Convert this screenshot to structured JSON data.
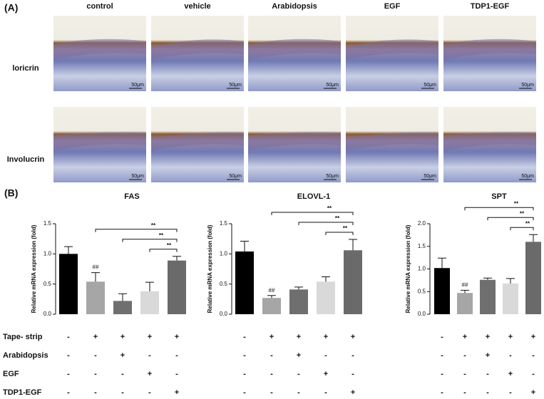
{
  "panel_a": {
    "label": "(A)",
    "columns": [
      "control",
      "vehicle",
      "Arabidopsis",
      "EGF",
      "TDP1-EGF"
    ],
    "rows": [
      "loricrin",
      "Involucrin"
    ],
    "scale_bar": "50μm"
  },
  "panel_b": {
    "label": "(B)"
  },
  "treatments": [
    {
      "label": "Tape- strip",
      "signs": [
        "-",
        "+",
        "+",
        "+",
        "+"
      ]
    },
    {
      "label": "Arabidopsis",
      "signs": [
        "-",
        "-",
        "+",
        "-",
        "-"
      ]
    },
    {
      "label": "EGF",
      "signs": [
        "-",
        "-",
        "-",
        "+",
        "-"
      ]
    },
    {
      "label": "TDP1-EGF",
      "signs": [
        "-",
        "-",
        "-",
        "-",
        "+"
      ]
    }
  ],
  "chart_data": [
    {
      "type": "bar",
      "title": "FAS",
      "ylabel": "Relative mRNA expression (fold)",
      "values": [
        1.0,
        0.54,
        0.22,
        0.38,
        0.89
      ],
      "errors": [
        0.12,
        0.15,
        0.12,
        0.15,
        0.07
      ],
      "colors": [
        "#000000",
        "#a6a6a6",
        "#6f6f6f",
        "#d9d9d9",
        "#6a6a6a"
      ],
      "annotations": [
        null,
        "##",
        null,
        null,
        null
      ],
      "significance": [
        "**",
        "**",
        "**"
      ],
      "ylim": [
        0,
        1.5
      ],
      "yticks": [
        {
          "value": 0,
          "label": "0.0"
        },
        0.5,
        {
          "value": 1,
          "label": "1.0"
        },
        1.5
      ]
    },
    {
      "type": "bar",
      "title": "ELOVL-1",
      "ylabel": "Relative mRNA expression (fold)",
      "values": [
        1.04,
        0.27,
        0.41,
        0.54,
        1.06
      ],
      "errors": [
        0.17,
        0.04,
        0.04,
        0.08,
        0.18
      ],
      "colors": [
        "#000000",
        "#a6a6a6",
        "#6f6f6f",
        "#d9d9d9",
        "#6a6a6a"
      ],
      "annotations": [
        null,
        "##",
        null,
        null,
        null
      ],
      "significance": [
        "**",
        "**",
        "**"
      ],
      "ylim": [
        0,
        1.5
      ],
      "yticks": [
        {
          "value": 0,
          "label": "0.0"
        },
        0.5,
        {
          "value": 1,
          "label": "1.0"
        },
        1.5
      ]
    },
    {
      "type": "bar",
      "title": "SPT",
      "ylabel": "Relative mRNA expression (fold)",
      "values": [
        1.02,
        0.47,
        0.76,
        0.68,
        1.6
      ],
      "errors": [
        0.22,
        0.06,
        0.04,
        0.11,
        0.16
      ],
      "colors": [
        "#000000",
        "#a6a6a6",
        "#6f6f6f",
        "#d9d9d9",
        "#6a6a6a"
      ],
      "annotations": [
        null,
        "##",
        null,
        null,
        null
      ],
      "significance": [
        "**",
        "**",
        "**"
      ],
      "ylim": [
        0,
        2
      ],
      "yticks": [
        {
          "value": 0,
          "label": "0.0"
        },
        0.5,
        {
          "value": 1,
          "label": "1.0"
        },
        1.5,
        {
          "value": 2,
          "label": "2.0"
        }
      ]
    }
  ]
}
